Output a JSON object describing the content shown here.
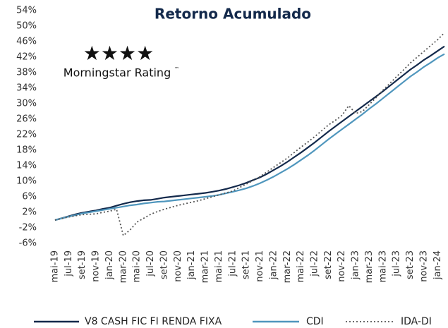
{
  "chart_data": {
    "type": "line",
    "title": "Retorno Acumulado",
    "rating": {
      "stars": "★★★★",
      "label": "Morningstar Rating",
      "tm": "™"
    },
    "categories": [
      "mai-19",
      null,
      "jul-19",
      null,
      "set-19",
      null,
      "nov-19",
      null,
      "jan-20",
      null,
      "mar-20",
      null,
      "mai-20",
      null,
      "jul-20",
      null,
      "set-20",
      null,
      "nov-20",
      null,
      "jan-21",
      null,
      "mar-21",
      null,
      "mai-21",
      null,
      "jul-21",
      null,
      "set-21",
      null,
      "nov-21",
      null,
      "jan-22",
      null,
      "mar-22",
      null,
      "mai-22",
      null,
      "jul-22",
      null,
      "set-22",
      null,
      "nov-22",
      null,
      "jan-23",
      null,
      "mar-23",
      null,
      "mai-23",
      null,
      "jul-23",
      null,
      "set-23",
      null,
      "nov-23",
      null,
      "jan-24",
      null
    ],
    "series": [
      {
        "name": "V8 CASH FIC FI RENDA FIXA",
        "color": "#13294b",
        "dash": "solid",
        "values": [
          0,
          0.5,
          1.0,
          1.5,
          1.9,
          2.2,
          2.5,
          2.9,
          3.2,
          3.7,
          4.2,
          4.6,
          4.9,
          5.1,
          5.2,
          5.5,
          5.8,
          6.0,
          6.2,
          6.4,
          6.6,
          6.8,
          7.0,
          7.3,
          7.6,
          8.0,
          8.5,
          9.0,
          9.6,
          10.3,
          11.0,
          11.9,
          12.9,
          13.9,
          15.0,
          16.2,
          17.4,
          18.7,
          20.0,
          21.4,
          22.8,
          24.1,
          25.4,
          26.7,
          28.0,
          29.3,
          30.6,
          31.9,
          33.2,
          34.6,
          36.0,
          37.4,
          38.8,
          40.0,
          41.3,
          42.4,
          43.6,
          44.8
        ]
      },
      {
        "name": "CDI",
        "color": "#4f96bd",
        "dash": "solid",
        "values": [
          0,
          0.45,
          0.9,
          1.3,
          1.7,
          2.0,
          2.3,
          2.6,
          2.9,
          3.2,
          3.5,
          3.8,
          4.0,
          4.3,
          4.5,
          4.7,
          4.8,
          5.0,
          5.2,
          5.4,
          5.6,
          5.8,
          6.0,
          6.2,
          6.5,
          6.9,
          7.3,
          7.7,
          8.2,
          8.8,
          9.5,
          10.3,
          11.2,
          12.2,
          13.2,
          14.3,
          15.5,
          16.7,
          18.0,
          19.4,
          20.8,
          22.1,
          23.4,
          24.7,
          26.0,
          27.3,
          28.7,
          30.0,
          31.4,
          32.8,
          34.2,
          35.6,
          37.0,
          38.2,
          39.5,
          40.6,
          41.8,
          42.8
        ]
      },
      {
        "name": "IDA-DI",
        "color": "#555555",
        "dash": "dotted",
        "values": [
          0,
          0.4,
          0.8,
          1.1,
          1.4,
          1.5,
          1.6,
          2.0,
          2.3,
          2.8,
          -4.0,
          -2.5,
          -0.5,
          0.5,
          1.5,
          2.2,
          2.8,
          3.3,
          3.8,
          4.2,
          4.6,
          5.0,
          5.5,
          6.0,
          6.5,
          7.0,
          7.5,
          8.4,
          9.3,
          10.2,
          11.2,
          12.4,
          13.6,
          14.8,
          16.0,
          17.4,
          18.8,
          20.1,
          21.5,
          23.0,
          24.5,
          25.7,
          27.0,
          29.5,
          27.5,
          28.0,
          29.8,
          31.6,
          33.5,
          35.2,
          37.0,
          38.7,
          40.5,
          42.0,
          43.5,
          45.0,
          46.5,
          48.3
        ]
      }
    ],
    "ylim": [
      -6,
      54
    ],
    "yticks": [
      {
        "value": 54,
        "label": "54%"
      },
      {
        "value": 50,
        "label": "50%"
      },
      {
        "value": 46,
        "label": "46%"
      },
      {
        "value": 42,
        "label": "42%"
      },
      {
        "value": 38,
        "label": "38%"
      },
      {
        "value": 34,
        "label": "34%"
      },
      {
        "value": 30,
        "label": "30%"
      },
      {
        "value": 26,
        "label": "26%"
      },
      {
        "value": 22,
        "label": "22%"
      },
      {
        "value": 18,
        "label": "18%"
      },
      {
        "value": 14,
        "label": "14%"
      },
      {
        "value": 10,
        "label": "10%"
      },
      {
        "value": 6,
        "label": "6%"
      },
      {
        "value": 2,
        "label": "2%"
      },
      {
        "value": -2,
        "label": "-2%"
      },
      {
        "value": -6,
        "label": "-6%"
      }
    ],
    "grid": false,
    "legend": "bottom"
  }
}
